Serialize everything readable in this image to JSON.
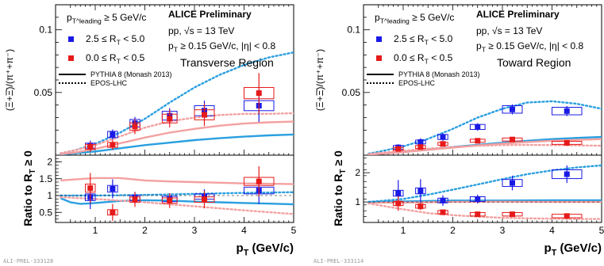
{
  "footers": [
    "ALI-PREL-333128",
    "ALI-PREL-333114"
  ],
  "chart_data": [
    {
      "type": "scatter",
      "title": "ALICE Preliminary",
      "region": "Transverse Region",
      "info": [
        "pp, √s = 13 TeV",
        "p_T ≥ 0.15 GeV/c, |η| < 0.8"
      ],
      "selection": "p_T^leading ≥ 5 GeV/c",
      "ylabel": "(Ξ+Ξ̄)/(π⁺+π⁻)",
      "ratio_ylabel": "Ratio to R_T ≥ 0",
      "xlabel": "p_T (GeV/c)",
      "xlim": [
        0.2,
        5.0
      ],
      "ylim": [
        0.0,
        0.12
      ],
      "ratio_ylim": [
        0.2,
        2.2
      ],
      "x_ticks": [
        1,
        2,
        3,
        4,
        5
      ],
      "y_tick_labels": [
        "0.05",
        "0.1"
      ],
      "ratio_tick_labels": [
        "0.5",
        "1",
        "1.5",
        "2"
      ],
      "legend": [
        {
          "label": "2.5 ≤ R_T < 5.0",
          "color": "#1a1ae6"
        },
        {
          "label": "0.0 ≤ R_T < 0.5",
          "color": "#e61a1a"
        },
        {
          "label": "PYTHIA 8 (Monash 2013)",
          "style": "solid"
        },
        {
          "label": "EPOS-LHC",
          "style": "dotted"
        }
      ],
      "series": [
        {
          "name": "2.5 ≤ R_T < 5.0",
          "color": "#1a1ae6",
          "points": [
            {
              "x": 0.9,
              "y": 0.0076,
              "xw": 0.2,
              "syst": 0.002,
              "stat": 0.004
            },
            {
              "x": 1.35,
              "y": 0.0165,
              "xw": 0.2,
              "syst": 0.0025,
              "stat": 0.004
            },
            {
              "x": 1.8,
              "y": 0.0255,
              "xw": 0.2,
              "syst": 0.003,
              "stat": 0.005
            },
            {
              "x": 2.5,
              "y": 0.0315,
              "xw": 0.3,
              "syst": 0.0035,
              "stat": 0.006
            },
            {
              "x": 3.2,
              "y": 0.0355,
              "xw": 0.4,
              "syst": 0.004,
              "stat": 0.008
            },
            {
              "x": 4.3,
              "y": 0.0395,
              "xw": 0.6,
              "syst": 0.004,
              "stat": 0.013
            }
          ]
        },
        {
          "name": "0.0 ≤ R_T < 0.5",
          "color": "#e61a1a",
          "points": [
            {
              "x": 0.9,
              "y": 0.0066,
              "xw": 0.2,
              "syst": 0.002,
              "stat": 0.004
            },
            {
              "x": 1.35,
              "y": 0.0082,
              "xw": 0.2,
              "syst": 0.002,
              "stat": 0.004
            },
            {
              "x": 1.8,
              "y": 0.0228,
              "xw": 0.2,
              "syst": 0.003,
              "stat": 0.006
            },
            {
              "x": 2.5,
              "y": 0.0292,
              "xw": 0.3,
              "syst": 0.0035,
              "stat": 0.007
            },
            {
              "x": 3.2,
              "y": 0.0322,
              "xw": 0.4,
              "syst": 0.004,
              "stat": 0.009
            },
            {
              "x": 4.3,
              "y": 0.0495,
              "xw": 0.6,
              "syst": 0.0045,
              "stat": 0.016
            }
          ]
        }
      ],
      "models": [
        {
          "name": "PYTHIA 8 high R_T",
          "color": "#2a9fe0",
          "style": "solid",
          "x": [
            0.3,
            0.6,
            1.0,
            1.5,
            2.0,
            2.5,
            3.0,
            3.5,
            4.0,
            4.5,
            5.0
          ],
          "y": [
            0.0005,
            0.0015,
            0.003,
            0.0055,
            0.008,
            0.01,
            0.012,
            0.0135,
            0.0148,
            0.0158,
            0.0165
          ]
        },
        {
          "name": "PYTHIA 8 low R_T",
          "color": "#f4a0a0",
          "style": "solid",
          "x": [
            0.3,
            0.6,
            1.0,
            1.5,
            2.0,
            2.5,
            3.0,
            3.5,
            4.0,
            4.5,
            5.0
          ],
          "y": [
            0.0008,
            0.0022,
            0.005,
            0.0095,
            0.014,
            0.018,
            0.021,
            0.0235,
            0.0252,
            0.0262,
            0.0268
          ]
        },
        {
          "name": "EPOS-LHC high R_T",
          "color": "#2a9fe0",
          "style": "dotted",
          "x": [
            0.3,
            0.6,
            1.0,
            1.5,
            2.0,
            2.5,
            3.0,
            3.5,
            4.0,
            4.5,
            5.0
          ],
          "y": [
            0.0015,
            0.004,
            0.009,
            0.018,
            0.029,
            0.042,
            0.054,
            0.064,
            0.072,
            0.078,
            0.082
          ]
        },
        {
          "name": "EPOS-LHC low R_T",
          "color": "#f4a0a0",
          "style": "dotted",
          "x": [
            0.3,
            0.6,
            1.0,
            1.5,
            2.0,
            2.5,
            3.0,
            3.5,
            4.0,
            4.5,
            5.0
          ],
          "y": [
            0.0015,
            0.004,
            0.008,
            0.015,
            0.022,
            0.027,
            0.03,
            0.032,
            0.033,
            0.033,
            0.0335
          ]
        }
      ],
      "ratio_series": [
        {
          "name": "2.5 ≤ R_T < 5.0",
          "color": "#1a1ae6",
          "points": [
            {
              "x": 0.9,
              "y": 0.95,
              "xw": 0.2,
              "syst": 0.1,
              "stat": 0.35
            },
            {
              "x": 1.35,
              "y": 1.2,
              "xw": 0.2,
              "syst": 0.1,
              "stat": 0.28
            },
            {
              "x": 1.8,
              "y": 0.93,
              "xw": 0.2,
              "syst": 0.08,
              "stat": 0.18
            },
            {
              "x": 2.5,
              "y": 0.9,
              "xw": 0.3,
              "syst": 0.08,
              "stat": 0.16
            },
            {
              "x": 3.2,
              "y": 0.97,
              "xw": 0.4,
              "syst": 0.08,
              "stat": 0.22
            },
            {
              "x": 4.3,
              "y": 1.15,
              "xw": 0.6,
              "syst": 0.1,
              "stat": 0.4
            }
          ]
        },
        {
          "name": "0.0 ≤ R_T < 0.5",
          "color": "#e61a1a",
          "points": [
            {
              "x": 0.9,
              "y": 1.22,
              "xw": 0.2,
              "syst": 0.12,
              "stat": 0.45
            },
            {
              "x": 1.35,
              "y": 0.5,
              "xw": 0.2,
              "syst": 0.08,
              "stat": 0.25
            },
            {
              "x": 1.8,
              "y": 0.88,
              "xw": 0.2,
              "syst": 0.08,
              "stat": 0.22
            },
            {
              "x": 2.5,
              "y": 0.85,
              "xw": 0.3,
              "syst": 0.08,
              "stat": 0.22
            },
            {
              "x": 3.2,
              "y": 0.88,
              "xw": 0.4,
              "syst": 0.08,
              "stat": 0.26
            },
            {
              "x": 4.3,
              "y": 1.42,
              "xw": 0.6,
              "syst": 0.12,
              "stat": 0.45
            }
          ]
        }
      ],
      "ratio_models": [
        {
          "name": "PYTHIA 8 low R_T",
          "color": "#f4a0a0",
          "style": "solid",
          "x": [
            0.3,
            0.6,
            1.0,
            1.5,
            2.0,
            2.5,
            3.0,
            3.5,
            4.0,
            4.5,
            5.0
          ],
          "y": [
            1.45,
            1.48,
            1.52,
            1.52,
            1.45,
            1.42,
            1.4,
            1.38,
            1.36,
            1.35,
            1.34
          ]
        },
        {
          "name": "PYTHIA 8 high R_T",
          "color": "#2a9fe0",
          "style": "solid",
          "x": [
            0.3,
            0.5,
            0.7,
            1.0,
            1.5,
            2.0,
            2.5,
            3.0,
            3.5,
            4.0,
            4.5,
            5.0
          ],
          "y": [
            0.92,
            0.8,
            0.75,
            0.78,
            0.84,
            0.86,
            0.85,
            0.82,
            0.8,
            0.78,
            0.76,
            0.74
          ]
        },
        {
          "name": "EPOS-LHC high R_T",
          "color": "#2a9fe0",
          "style": "dotted",
          "x": [
            0.3,
            1.0,
            2.0,
            3.0,
            4.0,
            5.0
          ],
          "y": [
            1.0,
            1.0,
            1.02,
            1.05,
            1.08,
            1.1
          ]
        },
        {
          "name": "EPOS-LHC low R_T",
          "color": "#f4a0a0",
          "style": "dotted",
          "x": [
            0.3,
            1.0,
            2.0,
            3.0,
            4.0,
            5.0
          ],
          "y": [
            0.95,
            0.9,
            0.8,
            0.68,
            0.56,
            0.45
          ]
        }
      ]
    },
    {
      "type": "scatter",
      "title": "ALICE Preliminary",
      "region": "Toward Region",
      "info": [
        "pp, √s = 13 TeV",
        "p_T ≥ 0.15 GeV/c, |η| < 0.8"
      ],
      "selection": "p_T^leading ≥ 5 GeV/c",
      "ylabel": "(Ξ+Ξ̄)/(π⁺+π⁻)",
      "ratio_ylabel": "Ratio to R_T ≥ 0",
      "xlabel": "p_T (GeV/c)",
      "xlim": [
        0.2,
        5.0
      ],
      "ylim": [
        0.0,
        0.12
      ],
      "ratio_ylim": [
        0.3,
        2.6
      ],
      "x_ticks": [
        1,
        2,
        3,
        4,
        5
      ],
      "y_tick_labels": [
        "0.05",
        "0.1"
      ],
      "ratio_tick_labels": [
        "1",
        "2"
      ],
      "legend": [
        {
          "label": "2.5 ≤ R_T < 5.0",
          "color": "#1a1ae6"
        },
        {
          "label": "0.0 ≤ R_T < 0.5",
          "color": "#e61a1a"
        },
        {
          "label": "PYTHIA 8 (Monash 2013)",
          "style": "solid"
        },
        {
          "label": "EPOS-LHC",
          "style": "dotted"
        }
      ],
      "series": [
        {
          "name": "2.5 ≤ R_T < 5.0",
          "color": "#1a1ae6",
          "points": [
            {
              "x": 0.9,
              "y": 0.0062,
              "xw": 0.2,
              "syst": 0.0015,
              "stat": 0.0025
            },
            {
              "x": 1.35,
              "y": 0.0105,
              "xw": 0.2,
              "syst": 0.0015,
              "stat": 0.003
            },
            {
              "x": 1.8,
              "y": 0.0145,
              "xw": 0.2,
              "syst": 0.002,
              "stat": 0.003
            },
            {
              "x": 2.5,
              "y": 0.0225,
              "xw": 0.3,
              "syst": 0.002,
              "stat": 0.003
            },
            {
              "x": 3.2,
              "y": 0.0365,
              "xw": 0.4,
              "syst": 0.003,
              "stat": 0.004
            },
            {
              "x": 4.3,
              "y": 0.0352,
              "xw": 0.6,
              "syst": 0.003,
              "stat": 0.004
            }
          ]
        },
        {
          "name": "0.0 ≤ R_T < 0.5",
          "color": "#e61a1a",
          "points": [
            {
              "x": 0.9,
              "y": 0.005,
              "xw": 0.2,
              "syst": 0.0012,
              "stat": 0.002
            },
            {
              "x": 1.35,
              "y": 0.0065,
              "xw": 0.2,
              "syst": 0.0012,
              "stat": 0.002
            },
            {
              "x": 1.8,
              "y": 0.009,
              "xw": 0.2,
              "syst": 0.0012,
              "stat": 0.002
            },
            {
              "x": 2.5,
              "y": 0.0115,
              "xw": 0.3,
              "syst": 0.0012,
              "stat": 0.002
            },
            {
              "x": 3.2,
              "y": 0.0125,
              "xw": 0.4,
              "syst": 0.0012,
              "stat": 0.002
            },
            {
              "x": 4.3,
              "y": 0.0098,
              "xw": 0.6,
              "syst": 0.0012,
              "stat": 0.002
            }
          ]
        }
      ],
      "models": [
        {
          "name": "PYTHIA 8 high R_T",
          "color": "#2a9fe0",
          "style": "solid",
          "x": [
            0.3,
            0.6,
            1.0,
            1.5,
            2.0,
            2.5,
            3.0,
            3.5,
            4.0,
            4.5,
            5.0
          ],
          "y": [
            0.0005,
            0.0012,
            0.0025,
            0.0045,
            0.0065,
            0.0083,
            0.01,
            0.0115,
            0.0128,
            0.0138,
            0.0145
          ]
        },
        {
          "name": "PYTHIA 8 low R_T",
          "color": "#f4a0a0",
          "style": "solid",
          "x": [
            0.3,
            0.6,
            1.0,
            1.5,
            2.0,
            2.5,
            3.0,
            3.5,
            4.0,
            4.5,
            5.0
          ],
          "y": [
            0.0005,
            0.0012,
            0.0024,
            0.0042,
            0.006,
            0.0078,
            0.0092,
            0.0105,
            0.0115,
            0.0122,
            0.0128
          ]
        },
        {
          "name": "EPOS-LHC high R_T",
          "color": "#2a9fe0",
          "style": "dotted",
          "x": [
            0.3,
            0.6,
            1.0,
            1.5,
            2.0,
            2.5,
            3.0,
            3.5,
            4.0,
            4.5,
            5.0
          ],
          "y": [
            0.0012,
            0.0035,
            0.007,
            0.013,
            0.021,
            0.03,
            0.037,
            0.042,
            0.043,
            0.041,
            0.037
          ]
        },
        {
          "name": "EPOS-LHC low R_T",
          "color": "#f4a0a0",
          "style": "dotted",
          "x": [
            0.3,
            0.6,
            1.0,
            1.5,
            2.0,
            2.5,
            3.0,
            3.5,
            4.0,
            4.5,
            5.0
          ],
          "y": [
            0.0008,
            0.002,
            0.0035,
            0.0052,
            0.0065,
            0.0075,
            0.008,
            0.0082,
            0.008,
            0.0078,
            0.0075
          ]
        }
      ],
      "ratio_series": [
        {
          "name": "2.5 ≤ R_T < 5.0",
          "color": "#1a1ae6",
          "points": [
            {
              "x": 0.9,
              "y": 1.3,
              "xw": 0.2,
              "syst": 0.1,
              "stat": 0.45
            },
            {
              "x": 1.35,
              "y": 1.38,
              "xw": 0.2,
              "syst": 0.1,
              "stat": 0.4
            },
            {
              "x": 1.8,
              "y": 1.05,
              "xw": 0.2,
              "syst": 0.08,
              "stat": 0.18
            },
            {
              "x": 2.5,
              "y": 1.1,
              "xw": 0.3,
              "syst": 0.08,
              "stat": 0.15
            },
            {
              "x": 3.2,
              "y": 1.65,
              "xw": 0.4,
              "syst": 0.12,
              "stat": 0.25
            },
            {
              "x": 4.3,
              "y": 1.95,
              "xw": 0.6,
              "syst": 0.15,
              "stat": 0.3
            }
          ]
        },
        {
          "name": "0.0 ≤ R_T < 0.5",
          "color": "#e61a1a",
          "points": [
            {
              "x": 0.9,
              "y": 0.95,
              "xw": 0.2,
              "syst": 0.07,
              "stat": 0.25
            },
            {
              "x": 1.35,
              "y": 0.85,
              "xw": 0.2,
              "syst": 0.06,
              "stat": 0.12
            },
            {
              "x": 1.8,
              "y": 0.65,
              "xw": 0.2,
              "syst": 0.06,
              "stat": 0.08
            },
            {
              "x": 2.5,
              "y": 0.58,
              "xw": 0.3,
              "syst": 0.06,
              "stat": 0.06
            },
            {
              "x": 3.2,
              "y": 0.58,
              "xw": 0.4,
              "syst": 0.06,
              "stat": 0.06
            },
            {
              "x": 4.3,
              "y": 0.52,
              "xw": 0.6,
              "syst": 0.06,
              "stat": 0.06
            }
          ]
        }
      ],
      "ratio_models": [
        {
          "name": "PYTHIA 8 high R_T",
          "color": "#2a9fe0",
          "style": "solid",
          "x": [
            0.3,
            1.0,
            2.0,
            3.0,
            4.0,
            5.0
          ],
          "y": [
            1.0,
            1.02,
            1.05,
            1.05,
            1.06,
            1.06
          ]
        },
        {
          "name": "PYTHIA 8 low R_T",
          "color": "#f4a0a0",
          "style": "solid",
          "x": [
            0.3,
            1.0,
            2.0,
            3.0,
            4.0,
            5.0
          ],
          "y": [
            0.98,
            0.98,
            1.0,
            1.01,
            1.0,
            1.0
          ]
        },
        {
          "name": "EPOS-LHC high R_T",
          "color": "#2a9fe0",
          "style": "dotted",
          "x": [
            0.3,
            1.0,
            1.5,
            2.0,
            2.5,
            3.0,
            3.5,
            4.0,
            4.5,
            5.0
          ],
          "y": [
            1.0,
            1.1,
            1.25,
            1.42,
            1.6,
            1.78,
            1.95,
            2.08,
            2.18,
            2.25
          ]
        },
        {
          "name": "EPOS-LHC low R_T",
          "color": "#f4a0a0",
          "style": "dotted",
          "x": [
            0.3,
            1.0,
            1.5,
            2.0,
            2.5,
            3.0,
            3.5,
            4.0,
            4.5,
            5.0
          ],
          "y": [
            0.95,
            0.75,
            0.62,
            0.55,
            0.5,
            0.46,
            0.44,
            0.43,
            0.42,
            0.42
          ]
        }
      ]
    }
  ]
}
